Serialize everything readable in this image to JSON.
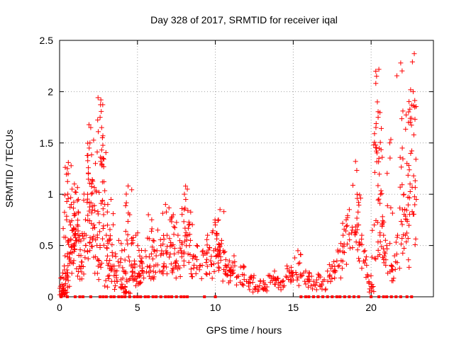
{
  "chart_data": {
    "type": "scatter",
    "title": "Day 328 of 2017, SRMTID for receiver iqal",
    "xlabel": "GPS time / hours",
    "ylabel": "SRMTID / TECUs",
    "xlim": [
      0,
      24
    ],
    "ylim": [
      0,
      2.5
    ],
    "x_ticks": [
      "0",
      "5",
      "10",
      "15",
      "20"
    ],
    "y_ticks": [
      "0",
      "0.5",
      "1",
      "1.5",
      "2",
      "2.5"
    ],
    "grid": true,
    "marker": "+",
    "series": [
      {
        "name": "SRMTID",
        "color": "#ff0000",
        "points": [
          [
            0.1,
            0.05
          ],
          [
            0.15,
            0.12
          ],
          [
            0.2,
            0.02
          ],
          [
            0.25,
            0.08
          ],
          [
            0.3,
            0.3
          ],
          [
            0.35,
            0.4
          ],
          [
            0.4,
            0.18
          ],
          [
            0.45,
            0.75
          ],
          [
            0.5,
            1.25
          ],
          [
            0.55,
            1.2
          ],
          [
            0.6,
            0.55
          ],
          [
            0.7,
            0.7
          ],
          [
            0.75,
            0.9
          ],
          [
            0.8,
            1.05
          ],
          [
            0.85,
            0.65
          ],
          [
            0.9,
            0.5
          ],
          [
            0.95,
            1.1
          ],
          [
            1.0,
            0.8
          ],
          [
            1.1,
            0.55
          ],
          [
            1.2,
            0.95
          ],
          [
            1.3,
            0.6
          ],
          [
            1.4,
            0.3
          ],
          [
            1.6,
            0.45
          ],
          [
            1.7,
            0.6
          ],
          [
            1.8,
            1.0
          ],
          [
            1.85,
            1.2
          ],
          [
            1.9,
            1.45
          ],
          [
            1.95,
            1.5
          ],
          [
            2.0,
            1.65
          ],
          [
            2.05,
            1.1
          ],
          [
            2.1,
            0.85
          ],
          [
            2.2,
            0.7
          ],
          [
            2.3,
            1.3
          ],
          [
            2.4,
            0.5
          ],
          [
            2.5,
            0.35
          ],
          [
            2.6,
            1.75
          ],
          [
            2.65,
            1.92
          ],
          [
            2.7,
            1.65
          ],
          [
            2.75,
            1.55
          ],
          [
            2.8,
            1.35
          ],
          [
            2.9,
            0.9
          ],
          [
            3.0,
            0.6
          ],
          [
            3.1,
            0.2
          ],
          [
            3.2,
            0.55
          ],
          [
            3.3,
            0.95
          ],
          [
            3.4,
            0.4
          ],
          [
            3.5,
            0.3
          ],
          [
            3.7,
            0.15
          ],
          [
            3.8,
            0.55
          ],
          [
            4.0,
            0.45
          ],
          [
            4.1,
            0.25
          ],
          [
            4.2,
            0.1
          ],
          [
            4.3,
            0.05
          ],
          [
            4.4,
            1.08
          ],
          [
            4.5,
            0.8
          ],
          [
            4.6,
            0.3
          ],
          [
            4.7,
            0.55
          ],
          [
            4.8,
            0.35
          ],
          [
            4.9,
            0.6
          ],
          [
            5.0,
            0.2
          ],
          [
            5.2,
            0.35
          ],
          [
            5.3,
            0.25
          ],
          [
            5.5,
            0.45
          ],
          [
            5.7,
            0.8
          ],
          [
            5.8,
            0.3
          ],
          [
            6.0,
            0.55
          ],
          [
            6.2,
            0.4
          ],
          [
            6.3,
            0.65
          ],
          [
            6.5,
            0.5
          ],
          [
            6.7,
            0.3
          ],
          [
            6.8,
            0.9
          ],
          [
            6.9,
            0.6
          ],
          [
            7.1,
            0.75
          ],
          [
            7.2,
            0.5
          ],
          [
            7.3,
            0.8
          ],
          [
            7.5,
            0.35
          ],
          [
            7.6,
            0.6
          ],
          [
            7.8,
            0.45
          ],
          [
            8.0,
            0.85
          ],
          [
            8.1,
            0.95
          ],
          [
            8.2,
            1.05
          ],
          [
            8.3,
            0.7
          ],
          [
            8.4,
            0.55
          ],
          [
            8.6,
            0.4
          ],
          [
            8.8,
            0.5
          ],
          [
            9.0,
            0.3
          ],
          [
            9.2,
            0.45
          ],
          [
            9.5,
            0.6
          ],
          [
            9.7,
            0.35
          ],
          [
            9.9,
            0.45
          ],
          [
            10.0,
            0.7
          ],
          [
            10.1,
            0.6
          ],
          [
            10.2,
            0.75
          ],
          [
            10.3,
            0.85
          ],
          [
            10.4,
            0.55
          ],
          [
            10.5,
            0.45
          ],
          [
            10.7,
            0.3
          ],
          [
            10.9,
            0.35
          ],
          [
            11.0,
            0.25
          ],
          [
            11.2,
            0.4
          ],
          [
            11.5,
            0.2
          ],
          [
            11.8,
            0.3
          ],
          [
            12.0,
            0.15
          ],
          [
            12.3,
            0.2
          ],
          [
            12.6,
            0.1
          ],
          [
            12.9,
            0.15
          ],
          [
            13.2,
            0.12
          ],
          [
            13.5,
            0.2
          ],
          [
            13.8,
            0.25
          ],
          [
            14.0,
            0.18
          ],
          [
            14.3,
            0.15
          ],
          [
            14.6,
            0.3
          ],
          [
            14.9,
            0.2
          ],
          [
            15.1,
            0.38
          ],
          [
            15.3,
            0.45
          ],
          [
            15.5,
            0.2
          ],
          [
            15.8,
            0.25
          ],
          [
            16.0,
            0.2
          ],
          [
            16.3,
            0.15
          ],
          [
            16.6,
            0.22
          ],
          [
            16.9,
            0.15
          ],
          [
            17.2,
            0.25
          ],
          [
            17.5,
            0.3
          ],
          [
            17.8,
            0.35
          ],
          [
            18.0,
            0.45
          ],
          [
            18.2,
            0.6
          ],
          [
            18.4,
            0.75
          ],
          [
            18.6,
            0.85
          ],
          [
            18.8,
            0.65
          ],
          [
            19.0,
            1.32
          ],
          [
            19.1,
            1.0
          ],
          [
            19.2,
            0.7
          ],
          [
            19.4,
            0.6
          ],
          [
            19.6,
            0.45
          ],
          [
            19.8,
            0.2
          ],
          [
            20.0,
            0.1
          ],
          [
            20.2,
            0.7
          ],
          [
            20.3,
            2.2
          ],
          [
            20.35,
            2.15
          ],
          [
            20.4,
            1.9
          ],
          [
            20.45,
            1.75
          ],
          [
            20.5,
            1.35
          ],
          [
            20.6,
            1.0
          ],
          [
            20.7,
            0.7
          ],
          [
            20.8,
            0.6
          ],
          [
            21.0,
            0.5
          ],
          [
            21.2,
            1.5
          ],
          [
            21.3,
            0.3
          ],
          [
            21.5,
            0.4
          ],
          [
            21.7,
            0.6
          ],
          [
            21.9,
            2.28
          ],
          [
            22.0,
            1.45
          ],
          [
            22.1,
            1.0
          ],
          [
            22.2,
            0.6
          ],
          [
            22.3,
            1.3
          ],
          [
            22.4,
            1.7
          ],
          [
            22.5,
            1.1
          ],
          [
            22.6,
            1.87
          ],
          [
            22.65,
            2.29
          ],
          [
            22.7,
            2.0
          ],
          [
            22.8,
            1.85
          ],
          [
            22.9,
            0.95
          ]
        ],
        "zero_points_x": [
          0.1,
          0.5,
          1.0,
          1.3,
          1.5,
          2.0,
          2.6,
          2.8,
          3.0,
          3.3,
          3.5,
          3.8,
          4.0,
          4.2,
          4.5,
          4.8,
          5.0,
          5.2,
          5.5,
          5.7,
          6.0,
          6.2,
          6.5,
          6.8,
          7.0,
          7.2,
          7.5,
          7.8,
          8.0,
          8.2,
          9.3,
          10.0,
          15.5,
          15.8,
          16.0,
          16.3,
          16.6,
          16.9,
          17.2,
          17.5,
          17.8,
          18.0,
          18.3,
          18.6,
          18.9,
          19.2,
          20.0,
          20.5,
          20.8,
          21.0,
          21.3,
          21.6,
          21.9,
          22.3,
          22.6
        ]
      }
    ]
  }
}
